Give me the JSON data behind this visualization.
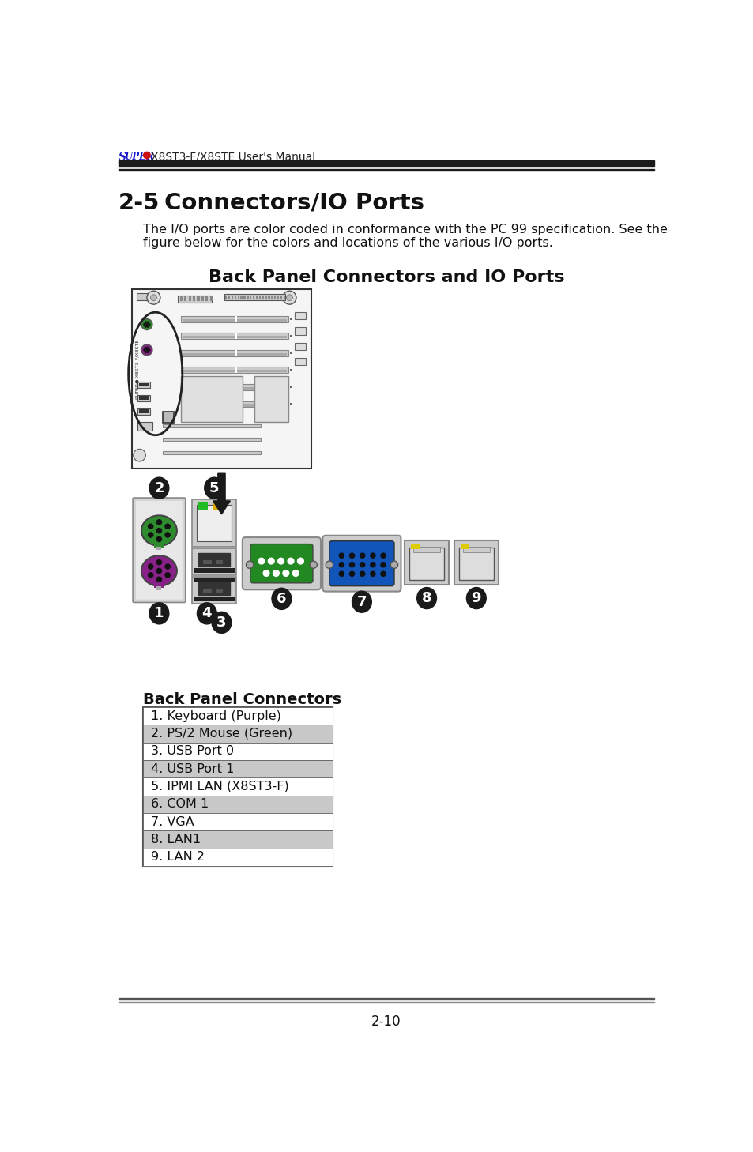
{
  "page_title_super": "SUPER",
  "page_title_rest": "X8ST3-F/X8STE User's Manual",
  "section_num": "2-5",
  "section_title": "Connectors/IO Ports",
  "body_line1": "The I/O ports are color coded in conformance with the PC 99 specification. See the",
  "body_line2": "figure below for the colors and locations of the various I/O ports.",
  "diagram_title": "Back Panel Connectors and IO Ports",
  "panel_connectors_title": "Back Panel Connectors",
  "table_rows": [
    {
      "label": "1. Keyboard (Purple)",
      "shaded": false
    },
    {
      "label": "2. PS/2 Mouse (Green)",
      "shaded": true
    },
    {
      "label": "3. USB Port 0",
      "shaded": false
    },
    {
      "label": "4. USB Port 1",
      "shaded": true
    },
    {
      "label": "5. IPMI LAN (X8ST3-F)",
      "shaded": false
    },
    {
      "label": "6. COM 1",
      "shaded": true
    },
    {
      "label": "7. VGA",
      "shaded": false
    },
    {
      "label": "8. LAN1",
      "shaded": true
    },
    {
      "label": "9. LAN 2",
      "shaded": false
    }
  ],
  "footer_text": "2-10",
  "bg_color": "#ffffff",
  "super_blue": "#1a1acc",
  "super_red": "#cc1111",
  "table_shaded_color": "#c8c8c8",
  "table_border_color": "#555555",
  "label_bg": "#1a1a1a",
  "label_fg": "#ffffff",
  "green_ps2": "#2e8b2e",
  "purple_ps2": "#882288",
  "green_com": "#228822",
  "blue_vga": "#1155bb",
  "gray_bg": "#d8d8d8",
  "gray_light": "#e8e8e8",
  "black": "#111111",
  "dark_gray": "#444444"
}
